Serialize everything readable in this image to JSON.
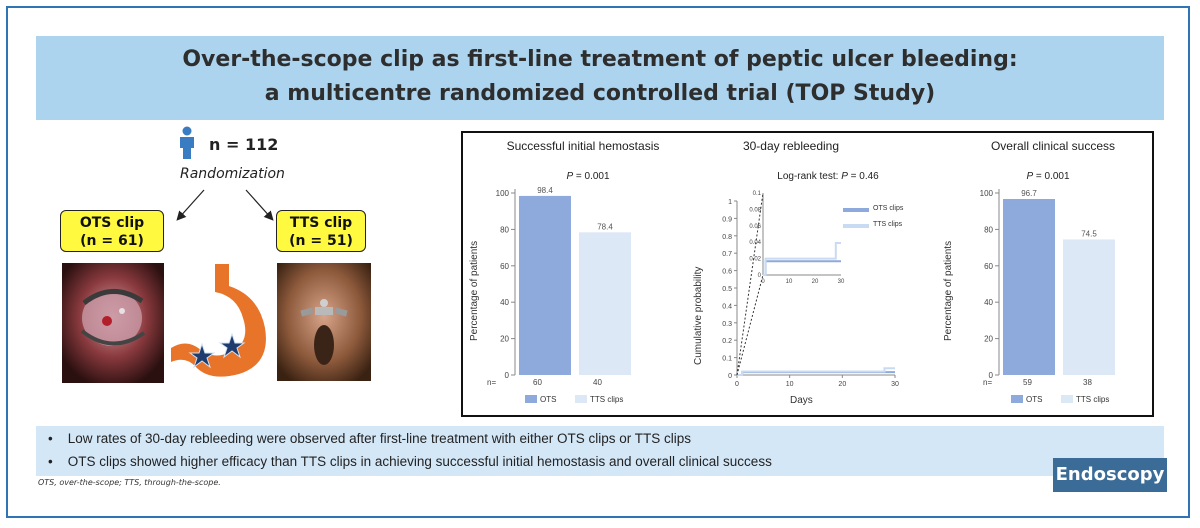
{
  "title": {
    "line1": "Over-the-scope clip as first-line treatment of peptic ulcer bleeding:",
    "line2": "a multicentre randomized controlled trial (TOP Study)"
  },
  "design": {
    "n_total": "n = 112",
    "randomization": "Randomization",
    "groups": [
      {
        "name": "OTS clip",
        "n": "(n = 61)"
      },
      {
        "name": "TTS clip",
        "n": "(n = 51)"
      }
    ]
  },
  "chart_data": [
    {
      "type": "bar",
      "title": "Successful initial hemostasis",
      "p_label": "P",
      "p_value": " = 0.001",
      "ylabel": "Percentage of patients",
      "ylim": [
        0,
        100
      ],
      "yticks": [
        "0",
        "20",
        "40",
        "60",
        "80",
        "100"
      ],
      "categories": [
        "OTS",
        "TTS clips"
      ],
      "values": [
        98.4,
        78.4
      ],
      "value_labels": [
        "98.4",
        "78.4"
      ],
      "n_prefix": "n=",
      "n_values": [
        "60",
        "40"
      ],
      "colors": [
        "#8ea9db",
        "#dde8f7"
      ]
    },
    {
      "type": "line",
      "title": "30-day rebleeding",
      "test_label": "Log-rank test: ",
      "p_label": "P",
      "p_value": " = 0.46",
      "ylabel": "Cumulative probability",
      "xlabel": "Days",
      "xlim": [
        0,
        30
      ],
      "ylim": [
        0,
        1
      ],
      "xticks": [
        "0",
        "10",
        "20",
        "30"
      ],
      "yticks": [
        "0",
        "0.1",
        "0.2",
        "0.3",
        "0.4",
        "0.5",
        "0.6",
        "0.7",
        "0.8",
        "0.9",
        "1"
      ],
      "inset_ylim": [
        0,
        0.1
      ],
      "inset_yticks": [
        "0",
        "0.02",
        "0.04",
        "0.06",
        "0.08",
        "0.1"
      ],
      "inset_xticks": [
        "0",
        "10",
        "20",
        "30"
      ],
      "series": [
        {
          "name": "OTS clips",
          "color": "#8ea9db",
          "x": [
            0,
            1,
            1,
            30
          ],
          "y": [
            0,
            0,
            0.0167,
            0.0167
          ]
        },
        {
          "name": "TTS clips",
          "color": "#c9dbf2",
          "x": [
            0,
            1,
            1,
            28,
            28,
            30
          ],
          "y": [
            0,
            0,
            0.02,
            0.02,
            0.039,
            0.039
          ]
        }
      ]
    },
    {
      "type": "bar",
      "title": "Overall clinical success",
      "p_label": "P",
      "p_value": " = 0.001",
      "ylabel": "Percentage of patients",
      "ylim": [
        0,
        100
      ],
      "yticks": [
        "0",
        "20",
        "40",
        "60",
        "80",
        "100"
      ],
      "categories": [
        "OTS",
        "TTS  clips"
      ],
      "values": [
        96.7,
        74.5
      ],
      "value_labels": [
        "96.7",
        "74.5"
      ],
      "n_prefix": "n=",
      "n_values": [
        "59",
        "38"
      ],
      "colors": [
        "#8ea9db",
        "#dde8f7"
      ]
    }
  ],
  "bullets": [
    "Low rates of 30-day rebleeding were observed after first-line treatment with either OTS clips or TTS clips",
    "OTS clips showed higher efficacy than TTS clips in achieving successful initial hemostasis and overall clinical success"
  ],
  "footnote": "OTS, over-the-scope; TTS, through-the-scope.",
  "logo": "Endoscopy",
  "colors": {
    "frame": "#2f74b5",
    "title_band": "#acd4ef",
    "bullet_band": "#d4e7f7",
    "group_box": "#fff93f",
    "stomach": "#e8742a",
    "person_icon": "#3a7cc2",
    "logo": "#3b6b97"
  }
}
